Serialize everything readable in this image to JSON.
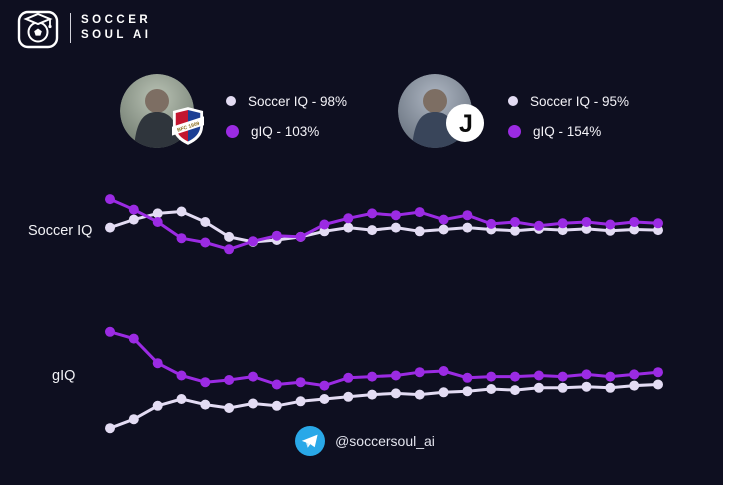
{
  "logo": {
    "line1": "SOCCER",
    "line2": "SOUL AI"
  },
  "managers": [
    {
      "badge_icon": "bologna-crest",
      "badge_text": "BFC 1909",
      "soccer_iq_label": "Soccer IQ - 98%",
      "giq_label": "gIQ - 103%"
    },
    {
      "badge_icon": "juventus-logo",
      "badge_glyph": "J",
      "soccer_iq_label": "Soccer IQ - 95%",
      "giq_label": "gIQ - 154%"
    }
  ],
  "colors": {
    "background": "#0e0f20",
    "soccer_iq_series": "#e3dcf3",
    "giq_series": "#9b2be3",
    "telegram_blue": "#29a8e8",
    "bologna_red": "#c3152f",
    "bologna_blue": "#1b3e94"
  },
  "chart_labels": {
    "top": "Soccer IQ",
    "bottom": "gIQ"
  },
  "footer": {
    "handle": "@soccersoul_ai"
  },
  "chart_data": [
    {
      "type": "line",
      "title": "Soccer IQ",
      "axes_hidden": true,
      "grid": false,
      "legend_position": "none",
      "ylim": [
        0,
        100
      ],
      "x": [
        1,
        2,
        3,
        4,
        5,
        6,
        7,
        8,
        9,
        10,
        11,
        12,
        13,
        14,
        15,
        16,
        17,
        18,
        19,
        20,
        21,
        22,
        23,
        24
      ],
      "series": [
        {
          "name": "series-light",
          "color": "#e3dcf3",
          "values": [
            49,
            62,
            72,
            75,
            58,
            34,
            26,
            29,
            34,
            43,
            49,
            45,
            49,
            43,
            46,
            49,
            46,
            44,
            47,
            45,
            47,
            44,
            46,
            45
          ]
        },
        {
          "name": "series-purple",
          "color": "#9b2be3",
          "values": [
            95,
            78,
            58,
            32,
            25,
            14,
            27,
            36,
            34,
            54,
            64,
            72,
            69,
            74,
            62,
            69,
            55,
            58,
            52,
            56,
            58,
            54,
            58,
            56
          ]
        }
      ]
    },
    {
      "type": "line",
      "title": "gIQ",
      "axes_hidden": true,
      "grid": false,
      "legend_position": "none",
      "ylim": [
        0,
        100
      ],
      "x": [
        1,
        2,
        3,
        4,
        5,
        6,
        7,
        8,
        9,
        10,
        11,
        12,
        13,
        14,
        15,
        16,
        17,
        18,
        19,
        20,
        21,
        22,
        23,
        24
      ],
      "series": [
        {
          "name": "series-light",
          "color": "#e3dcf3",
          "values": [
            7,
            15,
            27,
            33,
            28,
            25,
            29,
            27,
            31,
            33,
            35,
            37,
            38,
            37,
            39,
            40,
            42,
            41,
            43,
            43,
            44,
            43,
            45,
            46
          ]
        },
        {
          "name": "series-purple",
          "color": "#9b2be3",
          "values": [
            93,
            87,
            65,
            54,
            48,
            50,
            53,
            46,
            48,
            45,
            52,
            53,
            54,
            57,
            58,
            52,
            53,
            53,
            54,
            53,
            55,
            53,
            55,
            57
          ]
        }
      ]
    }
  ]
}
